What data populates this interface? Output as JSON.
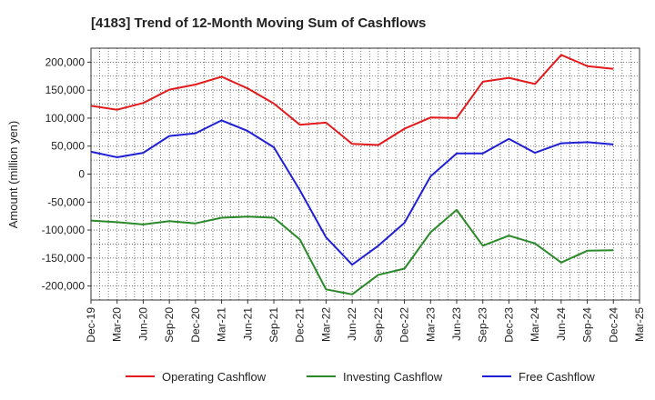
{
  "chart_data": {
    "type": "line",
    "title": "[4183]  Trend of 12-Month Moving Sum of Cashflows",
    "xlabel": "",
    "ylabel": "Amount (million yen)",
    "ylim": [
      -225000,
      225000
    ],
    "yticks": [
      200000,
      150000,
      100000,
      50000,
      0,
      -50000,
      -100000,
      -150000,
      -200000
    ],
    "ytick_labels": [
      "200,000",
      "150,000",
      "100,000",
      "50,000",
      "0",
      "-50,000",
      "-100,000",
      "-150,000",
      "-200,000"
    ],
    "x": [
      "Dec-19",
      "Mar-20",
      "Jun-20",
      "Sep-20",
      "Dec-20",
      "Mar-21",
      "Jun-21",
      "Sep-21",
      "Dec-21",
      "Mar-22",
      "Jun-22",
      "Sep-22",
      "Dec-22",
      "Mar-23",
      "Jun-23",
      "Sep-23",
      "Dec-23",
      "Mar-24",
      "Jun-24",
      "Sep-24",
      "Dec-24",
      "Mar-25"
    ],
    "grid": true,
    "legend_position": "bottom",
    "series": [
      {
        "name": "Operating Cashflow",
        "color": "#e31a1c",
        "values": [
          122000,
          115000,
          127000,
          151000,
          160000,
          174000,
          153000,
          126000,
          88000,
          92000,
          54000,
          52000,
          81000,
          101000,
          100000,
          165000,
          172000,
          161000,
          213000,
          193000,
          188000,
          null
        ]
      },
      {
        "name": "Investing Cashflow",
        "color": "#2a8a2a",
        "values": [
          -83000,
          -86000,
          -90000,
          -84000,
          -88000,
          -78000,
          -76000,
          -78000,
          -117000,
          -206000,
          -215000,
          -180000,
          -169000,
          -104000,
          -64000,
          -128000,
          -110000,
          -124000,
          -158000,
          -137000,
          -136000,
          null
        ]
      },
      {
        "name": "Free Cashflow",
        "color": "#1f1fd6",
        "values": [
          40000,
          30000,
          38000,
          68000,
          73000,
          96000,
          77000,
          48000,
          -29000,
          -113000,
          -162000,
          -128000,
          -87000,
          -4000,
          37000,
          37000,
          63000,
          38000,
          55000,
          57000,
          53000,
          null
        ]
      }
    ]
  }
}
